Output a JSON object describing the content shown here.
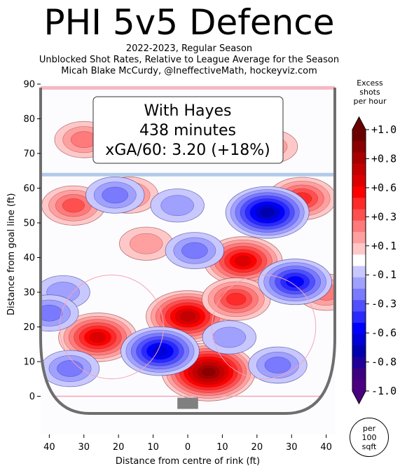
{
  "header": {
    "title": "PHI 5v5 Defence",
    "subtitle_lines": [
      "2022-2023, Regular Season",
      "Unblocked Shot Rates, Relative to League Average for the Season",
      "Micah Blake McCurdy, @IneffectiveMath, hockeyviz.com"
    ]
  },
  "infobox": {
    "line1": "With Hayes",
    "line2": "438 minutes",
    "line3": "xGA/60: 3.20 (+18%)"
  },
  "colorbar": {
    "title_lines": [
      "Excess",
      "shots",
      "per hour"
    ],
    "tick_labels": [
      "+1.0",
      "+0.8",
      "+0.6",
      "+0.3",
      "+0.1",
      "-0.1",
      "-0.3",
      "-0.6",
      "-0.8",
      "-1.0"
    ],
    "colors": [
      "#6b0000",
      "#8b0000",
      "#a80000",
      "#c40000",
      "#dc0000",
      "#ff0000",
      "#ff2a2a",
      "#ff5050",
      "#ff7a7a",
      "#ffa0a0",
      "#ffc8c8",
      "#ffffff",
      "#c8c8ff",
      "#a0a0ff",
      "#7a7aff",
      "#5050ff",
      "#2a2aff",
      "#0000ff",
      "#0000d8",
      "#0000b0",
      "#20009a",
      "#3d0080",
      "#4b0082"
    ]
  },
  "per_unit": [
    "per",
    "100",
    "sqft"
  ],
  "colors": {
    "red_line": "#f4a6b4",
    "blue_line": "#a9c4e8",
    "boards": "#6e6e6e",
    "net": "#808080",
    "positive": "#ff0000",
    "negative": "#0000ff"
  },
  "chart_data": {
    "type": "heatmap",
    "title": "PHI 5v5 Defence",
    "xlabel": "Distance from centre of rink (ft)",
    "ylabel": "Distance from goal line (ft)",
    "xlim": [
      42.5,
      -42.5
    ],
    "ylim": [
      -11,
      90
    ],
    "x_ticks": [
      40,
      30,
      20,
      10,
      0,
      10,
      20,
      30,
      40
    ],
    "x_tick_values": [
      40,
      30,
      20,
      10,
      0,
      -10,
      -20,
      -30,
      -40
    ],
    "y_ticks": [
      0,
      10,
      20,
      30,
      40,
      50,
      60,
      70,
      80,
      90
    ],
    "colorbar_range": [
      -1.0,
      1.0
    ],
    "hotspots": [
      {
        "x": -6,
        "y": 7,
        "value": 1.0
      },
      {
        "x": 0,
        "y": 23,
        "value": 0.8
      },
      {
        "x": 26,
        "y": 17,
        "value": 0.7
      },
      {
        "x": -16,
        "y": 39,
        "value": 0.7
      },
      {
        "x": -14,
        "y": 28,
        "value": 0.5
      },
      {
        "x": 33,
        "y": 55,
        "value": 0.4
      },
      {
        "x": -33,
        "y": 57,
        "value": 0.5
      },
      {
        "x": 17,
        "y": 58,
        "value": 0.3
      },
      {
        "x": 12,
        "y": 44,
        "value": 0.2
      },
      {
        "x": 30,
        "y": 74,
        "value": 0.3
      },
      {
        "x": 6,
        "y": 78,
        "value": 0.3
      },
      {
        "x": -40,
        "y": 30,
        "value": 0.3
      },
      {
        "x": -24,
        "y": 72,
        "value": 0.2
      },
      {
        "x": 8,
        "y": 13,
        "value": -0.7
      },
      {
        "x": -23,
        "y": 53,
        "value": -0.8
      },
      {
        "x": -31,
        "y": 33,
        "value": -0.6
      },
      {
        "x": -2,
        "y": 42,
        "value": -0.3
      },
      {
        "x": 21,
        "y": 58,
        "value": -0.3
      },
      {
        "x": 36,
        "y": 30,
        "value": -0.2
      },
      {
        "x": 40,
        "y": 24,
        "value": -0.3
      },
      {
        "x": 34,
        "y": 8,
        "value": -0.3
      },
      {
        "x": -26,
        "y": 9,
        "value": -0.3
      },
      {
        "x": -12,
        "y": 17,
        "value": -0.2
      },
      {
        "x": 3,
        "y": 55,
        "value": -0.2
      },
      {
        "x": -15,
        "y": 75,
        "value": -0.2
      }
    ]
  }
}
